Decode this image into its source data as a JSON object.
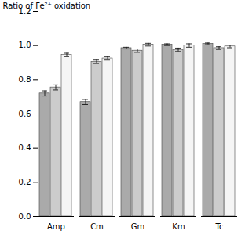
{
  "chart_data": {
    "type": "bar",
    "categories": [
      "Amp",
      "Cm",
      "Gm",
      "Km",
      "Tc"
    ],
    "series": [
      {
        "color": "#aaaaaa",
        "values": [
          0.72,
          0.67,
          0.985,
          1.005,
          1.01
        ],
        "errors": [
          0.015,
          0.015,
          0.005,
          0.005,
          0.005
        ]
      },
      {
        "color": "#cccccc",
        "values": [
          0.755,
          0.905,
          0.97,
          0.975,
          0.985
        ],
        "errors": [
          0.015,
          0.01,
          0.01,
          0.01,
          0.008
        ]
      },
      {
        "color": "#f5f5f5",
        "values": [
          0.945,
          0.925,
          1.005,
          1.0,
          0.995
        ],
        "errors": [
          0.01,
          0.01,
          0.008,
          0.01,
          0.008
        ]
      }
    ],
    "ylabel": "Ratio of Fe²⁺ oxidation",
    "ylim": [
      0,
      1.2
    ],
    "yticks": [
      {
        "value": 0,
        "label": "0.0"
      },
      0.2,
      0.4,
      0.6,
      0.8,
      {
        "value": 1.0,
        "label": "1.0"
      },
      1.2
    ],
    "grid": false
  }
}
